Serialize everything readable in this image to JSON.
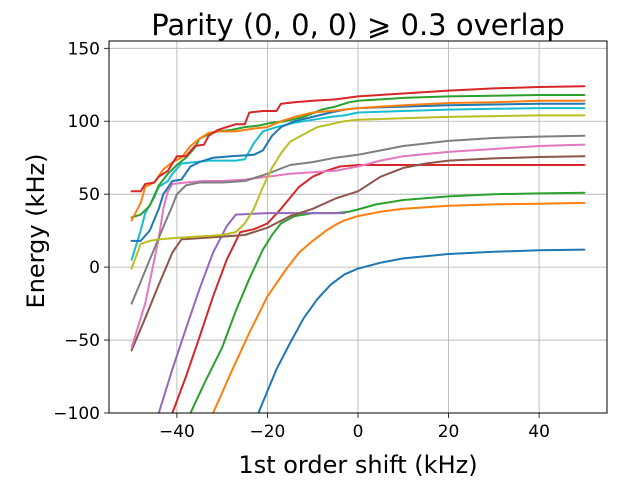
{
  "chart_data": {
    "type": "line",
    "title": "Parity (0, 0, 0) ⩾ 0.3 overlap",
    "xlabel": "1st order shift (kHz)",
    "ylabel": "Energy (kHz)",
    "xlim": [
      -55,
      55
    ],
    "ylim": [
      -100,
      155
    ],
    "xticks": [
      -40,
      -20,
      0,
      20,
      40
    ],
    "xtick_labels": [
      "−40",
      "−20",
      "0",
      "20",
      "40"
    ],
    "yticks": [
      -100,
      -50,
      0,
      50,
      100,
      150
    ],
    "ytick_labels": [
      "−100",
      "−50",
      "0",
      "50",
      "100",
      "150"
    ],
    "grid": true,
    "legend": "none",
    "series": [
      {
        "color": "#1f77b4",
        "points": [
          [
            -22,
            -100
          ],
          [
            -18,
            -70
          ],
          [
            -15,
            -52
          ],
          [
            -12,
            -35
          ],
          [
            -9,
            -22
          ],
          [
            -6,
            -12
          ],
          [
            -3,
            -5
          ],
          [
            0,
            -1
          ],
          [
            5,
            3
          ],
          [
            10,
            6
          ],
          [
            20,
            9
          ],
          [
            30,
            10.5
          ],
          [
            40,
            11.5
          ],
          [
            50,
            12
          ]
        ]
      },
      {
        "color": "#ff7f0e",
        "points": [
          [
            -32,
            -100
          ],
          [
            -28,
            -72
          ],
          [
            -24,
            -45
          ],
          [
            -20,
            -20
          ],
          [
            -16,
            -2
          ],
          [
            -13,
            10
          ],
          [
            -10,
            18
          ],
          [
            -7,
            25
          ],
          [
            -5,
            29
          ],
          [
            -3,
            32
          ],
          [
            0,
            35
          ],
          [
            5,
            38
          ],
          [
            10,
            40
          ],
          [
            20,
            42
          ],
          [
            30,
            43
          ],
          [
            40,
            43.5
          ],
          [
            50,
            44
          ]
        ]
      },
      {
        "color": "#2ca02c",
        "points": [
          [
            -37,
            -100
          ],
          [
            -34,
            -80
          ],
          [
            -30,
            -55
          ],
          [
            -27,
            -30
          ],
          [
            -24,
            -8
          ],
          [
            -21,
            12
          ],
          [
            -19,
            22
          ],
          [
            -17,
            30
          ],
          [
            -14,
            35
          ],
          [
            -10,
            37
          ],
          [
            -5,
            37
          ],
          [
            -2,
            38
          ],
          [
            0,
            39.5
          ],
          [
            4,
            43
          ],
          [
            10,
            46
          ],
          [
            20,
            48.5
          ],
          [
            30,
            50
          ],
          [
            40,
            50.5
          ],
          [
            50,
            51
          ]
        ]
      },
      {
        "color": "#d62728",
        "points": [
          [
            -41,
            -100
          ],
          [
            -38,
            -75
          ],
          [
            -35,
            -48
          ],
          [
            -32,
            -20
          ],
          [
            -29,
            5
          ],
          [
            -26,
            24
          ],
          [
            -23,
            26
          ],
          [
            -20,
            30
          ],
          [
            -17,
            40
          ],
          [
            -13,
            55
          ],
          [
            -10,
            62
          ],
          [
            -7,
            66
          ],
          [
            -4,
            69
          ],
          [
            0,
            70
          ],
          [
            10,
            70
          ],
          [
            20,
            70
          ],
          [
            30,
            70
          ],
          [
            40,
            70
          ],
          [
            50,
            70
          ]
        ]
      },
      {
        "color": "#9467bd",
        "points": [
          [
            -44,
            -100
          ],
          [
            -41,
            -70
          ],
          [
            -38,
            -42
          ],
          [
            -35,
            -15
          ],
          [
            -32,
            10
          ],
          [
            -29,
            28
          ],
          [
            -27,
            36
          ],
          [
            -20,
            37
          ],
          [
            -10,
            37
          ],
          [
            -3,
            37
          ]
        ]
      },
      {
        "color": "#8c564b",
        "points": [
          [
            -50,
            -57
          ],
          [
            -47,
            -35
          ],
          [
            -44,
            -12
          ],
          [
            -41,
            10
          ],
          [
            -39,
            19
          ],
          [
            -34,
            20
          ],
          [
            -25,
            22
          ],
          [
            -20,
            27
          ],
          [
            -15,
            35
          ],
          [
            -10,
            40
          ],
          [
            -5,
            47
          ],
          [
            0,
            52
          ],
          [
            5,
            62
          ],
          [
            10,
            68
          ],
          [
            15,
            71
          ],
          [
            20,
            73
          ],
          [
            30,
            74.5
          ],
          [
            40,
            75.5
          ],
          [
            50,
            76
          ]
        ]
      },
      {
        "color": "#e377c2",
        "points": [
          [
            -50,
            -55
          ],
          [
            -47,
            -25
          ],
          [
            -45,
            5
          ],
          [
            -44,
            20
          ],
          [
            -43,
            40
          ],
          [
            -42,
            52
          ],
          [
            -41,
            57
          ],
          [
            -38,
            58
          ],
          [
            -34,
            59
          ],
          [
            -30,
            59
          ],
          [
            -25,
            60
          ],
          [
            -20,
            62
          ],
          [
            -15,
            64
          ],
          [
            -10,
            65
          ],
          [
            -5,
            66
          ],
          [
            0,
            69
          ],
          [
            5,
            73
          ],
          [
            10,
            76
          ],
          [
            20,
            79
          ],
          [
            30,
            81
          ],
          [
            40,
            83
          ],
          [
            50,
            84
          ]
        ]
      },
      {
        "color": "#7f7f7f",
        "points": [
          [
            -50,
            -25
          ],
          [
            -48,
            -10
          ],
          [
            -46,
            5
          ],
          [
            -44,
            20
          ],
          [
            -42,
            35
          ],
          [
            -41,
            42
          ],
          [
            -40,
            50
          ],
          [
            -38,
            56
          ],
          [
            -35,
            58
          ],
          [
            -30,
            58
          ],
          [
            -25,
            59
          ],
          [
            -20,
            64
          ],
          [
            -15,
            70
          ],
          [
            -10,
            72
          ],
          [
            -5,
            75
          ],
          [
            0,
            77
          ],
          [
            5,
            80
          ],
          [
            10,
            83
          ],
          [
            20,
            86.5
          ],
          [
            30,
            88.5
          ],
          [
            40,
            89.5
          ],
          [
            50,
            90
          ]
        ]
      },
      {
        "color": "#bcbd22",
        "points": [
          [
            -50,
            -1
          ],
          [
            -48,
            16
          ],
          [
            -46,
            18
          ],
          [
            -44,
            19
          ],
          [
            -40,
            20
          ],
          [
            -35,
            21
          ],
          [
            -30,
            22
          ],
          [
            -27,
            24
          ],
          [
            -25,
            30
          ],
          [
            -23,
            40
          ],
          [
            -21,
            55
          ],
          [
            -19,
            68
          ],
          [
            -17,
            78
          ],
          [
            -15,
            86
          ],
          [
            -12,
            91
          ],
          [
            -9,
            96
          ],
          [
            -6,
            98
          ],
          [
            -3,
            100
          ],
          [
            0,
            101
          ],
          [
            10,
            102
          ],
          [
            20,
            103
          ],
          [
            30,
            103.5
          ],
          [
            40,
            104
          ],
          [
            50,
            104
          ]
        ]
      },
      {
        "color": "#17becf",
        "points": [
          [
            -50,
            5
          ],
          [
            -48,
            25
          ],
          [
            -47,
            37
          ],
          [
            -45,
            48
          ],
          [
            -44,
            55
          ],
          [
            -42,
            59
          ],
          [
            -41,
            64
          ],
          [
            -39,
            71
          ],
          [
            -36,
            72
          ],
          [
            -33,
            73
          ],
          [
            -30,
            73
          ],
          [
            -27,
            73
          ],
          [
            -25,
            74
          ],
          [
            -23,
            85
          ],
          [
            -21,
            93
          ],
          [
            -18,
            96
          ],
          [
            -14,
            99
          ],
          [
            -10,
            101
          ],
          [
            -6,
            103
          ],
          [
            -3,
            104
          ],
          [
            0,
            106
          ],
          [
            10,
            107
          ],
          [
            20,
            108
          ],
          [
            30,
            108.5
          ],
          [
            40,
            109
          ],
          [
            50,
            109
          ]
        ]
      },
      {
        "color": "#1f77b4",
        "points": [
          [
            -50,
            18
          ],
          [
            -48,
            18
          ],
          [
            -46,
            25
          ],
          [
            -44,
            40
          ],
          [
            -43,
            50
          ],
          [
            -41,
            59
          ],
          [
            -39,
            60
          ],
          [
            -37,
            69
          ],
          [
            -35,
            72
          ],
          [
            -32,
            75
          ],
          [
            -28,
            76
          ],
          [
            -23,
            77
          ],
          [
            -21,
            80
          ],
          [
            -19,
            90
          ],
          [
            -17,
            96
          ],
          [
            -14,
            100
          ],
          [
            -10,
            103
          ],
          [
            -6,
            106
          ],
          [
            -3,
            108
          ],
          [
            0,
            109
          ],
          [
            10,
            110
          ],
          [
            20,
            111
          ],
          [
            30,
            111.5
          ],
          [
            40,
            112
          ],
          [
            50,
            112
          ]
        ]
      },
      {
        "color": "#2ca02c",
        "points": [
          [
            -50,
            34
          ],
          [
            -48,
            36
          ],
          [
            -46,
            42
          ],
          [
            -44,
            56
          ],
          [
            -42,
            64
          ],
          [
            -40,
            70
          ],
          [
            -38,
            75
          ],
          [
            -36,
            82
          ],
          [
            -35,
            88
          ],
          [
            -33,
            91
          ],
          [
            -31,
            93
          ],
          [
            -28,
            94
          ],
          [
            -25,
            96
          ],
          [
            -22,
            97
          ],
          [
            -19,
            99
          ],
          [
            -16,
            100
          ],
          [
            -12,
            103
          ],
          [
            -8,
            108
          ],
          [
            -5,
            110
          ],
          [
            -2,
            113
          ],
          [
            0,
            114
          ],
          [
            10,
            116
          ],
          [
            20,
            117
          ],
          [
            30,
            117.5
          ],
          [
            40,
            118
          ],
          [
            50,
            118
          ]
        ]
      },
      {
        "color": "#ff7f0e",
        "points": [
          [
            -50,
            32
          ],
          [
            -48,
            44
          ],
          [
            -47,
            55
          ],
          [
            -45,
            58
          ],
          [
            -43,
            67
          ],
          [
            -41,
            72
          ],
          [
            -39,
            75
          ],
          [
            -37,
            83
          ],
          [
            -35,
            88
          ],
          [
            -33,
            92
          ],
          [
            -31,
            93
          ],
          [
            -27,
            93
          ],
          [
            -23,
            95
          ],
          [
            -20,
            96
          ],
          [
            -17,
            100
          ],
          [
            -14,
            103
          ],
          [
            -10,
            106
          ],
          [
            -6,
            107
          ],
          [
            -3,
            108
          ],
          [
            0,
            109
          ],
          [
            10,
            111
          ],
          [
            20,
            112.5
          ],
          [
            30,
            113
          ],
          [
            40,
            114
          ],
          [
            50,
            114
          ]
        ]
      },
      {
        "color": "#d62728",
        "points": [
          [
            -50,
            52
          ],
          [
            -48,
            52
          ],
          [
            -47,
            57
          ],
          [
            -45,
            58
          ],
          [
            -44,
            62
          ],
          [
            -42,
            66
          ],
          [
            -40,
            76
          ],
          [
            -38,
            76
          ],
          [
            -36,
            83
          ],
          [
            -34,
            84
          ],
          [
            -33,
            90
          ],
          [
            -31,
            94
          ],
          [
            -29,
            96
          ],
          [
            -27,
            98
          ],
          [
            -25,
            98
          ],
          [
            -24,
            106
          ],
          [
            -21,
            107
          ],
          [
            -18,
            107
          ],
          [
            -17,
            112
          ],
          [
            -14,
            113
          ],
          [
            -10,
            114
          ],
          [
            -5,
            115
          ],
          [
            0,
            117
          ],
          [
            10,
            119
          ],
          [
            20,
            121
          ],
          [
            30,
            122.5
          ],
          [
            40,
            123.5
          ],
          [
            50,
            124
          ]
        ]
      }
    ]
  }
}
